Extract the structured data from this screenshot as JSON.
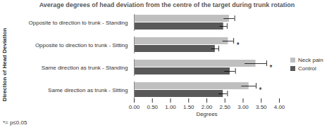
{
  "chart_data": {
    "type": "bar",
    "orientation": "horizontal",
    "title": "Average degrees of head deviation from the centre of the target during trunk rotation",
    "x_label": "Degrees",
    "y_label": "Direction of Head Deviation",
    "categories": [
      "Opposite to direction to trunk - Standing",
      "Opposite to direction to trunk - Sitting",
      "Same direction as trunk - Standing",
      "Same direction as trunk - Sitting"
    ],
    "series": [
      {
        "name": "Neck pain",
        "color": "#bfbfbf",
        "values": [
          2.62,
          2.59,
          3.35,
          3.16
        ],
        "errors": [
          0.15,
          0.15,
          0.3,
          0.2
        ]
      },
      {
        "name": "Control",
        "color": "#595959",
        "values": [
          2.46,
          2.23,
          2.64,
          2.45
        ],
        "errors": [
          0.1,
          0.1,
          0.15,
          0.12
        ]
      }
    ],
    "xlim": [
      0,
      4
    ],
    "xticks": [
      {
        "value": 0,
        "label": "0.00"
      },
      {
        "value": 0.5,
        "label": "0.50"
      },
      {
        "value": 1,
        "label": "1.00"
      },
      {
        "value": 1.5,
        "label": "1.50"
      },
      {
        "value": 2,
        "label": "2.00"
      },
      {
        "value": 2.5,
        "label": "2.50"
      },
      {
        "value": 3,
        "label": "3.00"
      },
      {
        "value": 3.5,
        "label": "3.50"
      },
      {
        "value": 4,
        "label": "4.00"
      }
    ],
    "grid": false,
    "legend": "right",
    "annotations": [
      {
        "category": "Opposite to direction to trunk - Sitting",
        "text": "*"
      },
      {
        "category": "Same direction as trunk - Standing",
        "text": "*"
      },
      {
        "category": "Same direction as trunk - Sitting",
        "text": "*"
      }
    ],
    "footnote": "*= p≤0.05"
  }
}
